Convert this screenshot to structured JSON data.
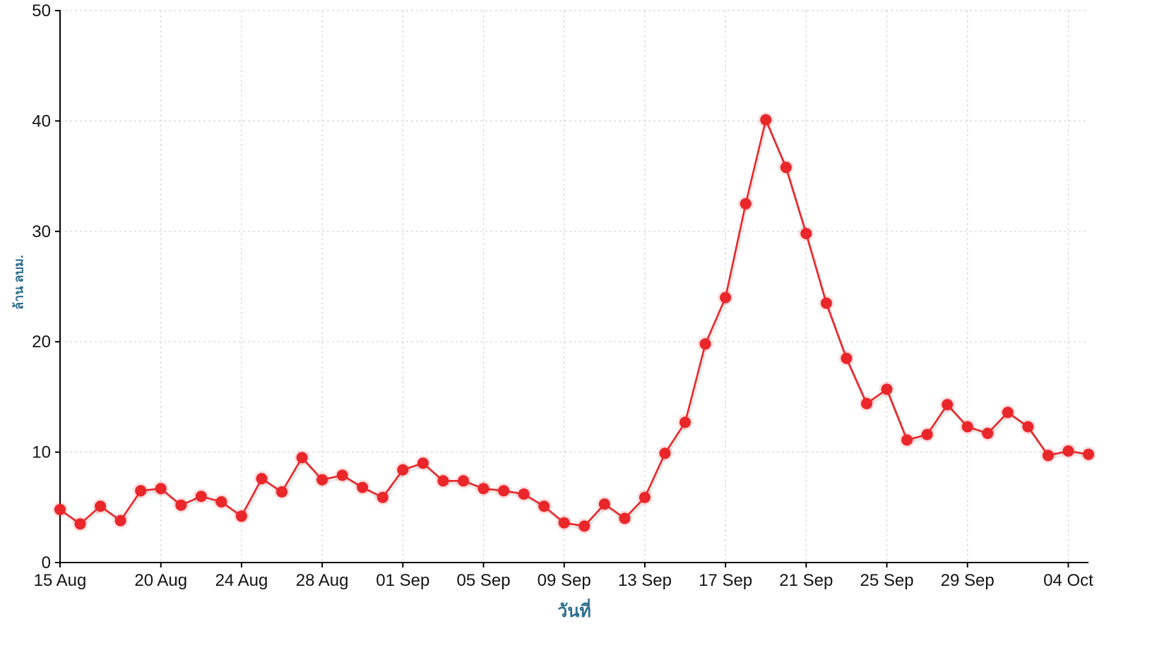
{
  "chart_data": {
    "type": "line",
    "title": "",
    "xlabel": "วันที่",
    "ylabel": "ล้าน ลบม.",
    "x": [
      "15 Aug",
      "16 Aug",
      "17 Aug",
      "18 Aug",
      "19 Aug",
      "20 Aug",
      "21 Aug",
      "22 Aug",
      "23 Aug",
      "24 Aug",
      "25 Aug",
      "26 Aug",
      "27 Aug",
      "28 Aug",
      "29 Aug",
      "30 Aug",
      "31 Aug",
      "01 Sep",
      "02 Sep",
      "03 Sep",
      "04 Sep",
      "05 Sep",
      "06 Sep",
      "07 Sep",
      "08 Sep",
      "09 Sep",
      "10 Sep",
      "11 Sep",
      "12 Sep",
      "13 Sep",
      "14 Sep",
      "15 Sep",
      "16 Sep",
      "17 Sep",
      "18 Sep",
      "19 Sep",
      "20 Sep",
      "21 Sep",
      "22 Sep",
      "23 Sep",
      "24 Sep",
      "25 Sep",
      "26 Sep",
      "27 Sep",
      "28 Sep",
      "29 Sep",
      "30 Sep",
      "01 Oct",
      "02 Oct",
      "03 Oct",
      "04 Oct",
      "05 Oct"
    ],
    "values": [
      4.8,
      3.5,
      5.1,
      3.8,
      6.5,
      6.7,
      5.2,
      6.0,
      5.5,
      4.2,
      7.6,
      6.4,
      9.5,
      7.5,
      7.9,
      6.8,
      5.9,
      8.4,
      9.0,
      7.4,
      7.4,
      6.7,
      6.5,
      6.2,
      5.1,
      3.6,
      3.3,
      5.3,
      4.0,
      5.9,
      9.9,
      12.7,
      19.8,
      24.0,
      32.5,
      40.1,
      35.8,
      29.8,
      23.5,
      18.5,
      14.4,
      15.7,
      11.1,
      11.6,
      14.3,
      12.3,
      11.7,
      13.6,
      12.3,
      9.7,
      10.1,
      9.8
    ],
    "x_ticks": [
      {
        "label": "15 Aug",
        "day": 0
      },
      {
        "label": "20 Aug",
        "day": 5
      },
      {
        "label": "24 Aug",
        "day": 9
      },
      {
        "label": "28 Aug",
        "day": 13
      },
      {
        "label": "01 Sep",
        "day": 17
      },
      {
        "label": "05 Sep",
        "day": 21
      },
      {
        "label": "09 Sep",
        "day": 25
      },
      {
        "label": "13 Sep",
        "day": 29
      },
      {
        "label": "17 Sep",
        "day": 33
      },
      {
        "label": "21 Sep",
        "day": 37
      },
      {
        "label": "25 Sep",
        "day": 41
      },
      {
        "label": "29 Sep",
        "day": 45
      },
      {
        "label": "04 Oct",
        "day": 50
      }
    ],
    "y_ticks": [
      0,
      10,
      20,
      30,
      40,
      50
    ],
    "ylim": [
      0,
      50
    ],
    "grid": true,
    "legend_position": "none",
    "series_color": "#e9262a",
    "axis_title_color": "#31708f",
    "tick_label_color": "#141414",
    "grid_color": "#d3d3d3",
    "axis_color": "#000000"
  }
}
